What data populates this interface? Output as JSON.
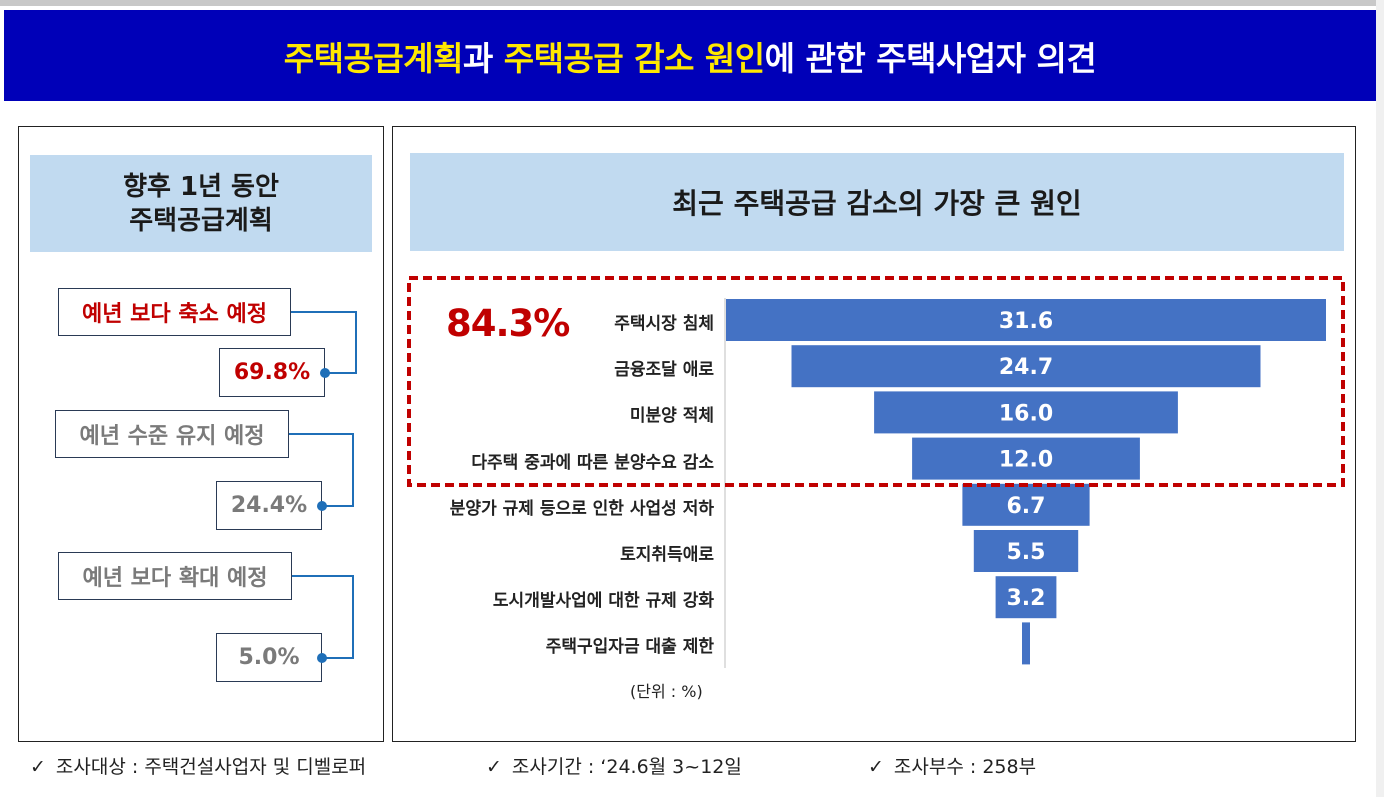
{
  "title": {
    "part1": "주택공급계획",
    "part2": "과 ",
    "part3": "주택공급 감소 원인",
    "part4": "에 관한 주택사업자 의견"
  },
  "left_panel": {
    "heading_line1": "향후 1년 동안",
    "heading_line2": "주택공급계획",
    "items": [
      {
        "label": "예년 보다 축소 예정",
        "value": "69.8%",
        "color": "#c00000"
      },
      {
        "label": "예년 수준 유지 예정",
        "value": "24.4%",
        "color": "#7a7a7a"
      },
      {
        "label": "예년 보다 확대 예정",
        "value": "5.0%",
        "color": "#7a7a7a"
      }
    ]
  },
  "right_panel": {
    "heading": "최근 주택공급 감소의 가장 큰 원인",
    "highlight_total": "84.3%",
    "unit": "(단위 : %)"
  },
  "chart_data": {
    "type": "bar",
    "orientation": "horizontal-centered-funnel",
    "title": "최근 주택공급 감소의 가장 큰 원인",
    "categories": [
      "주택시장 침체",
      "금융조달 애로",
      "미분양 적체",
      "다주택 중과에 따른 분양수요 감소",
      "분양가 규제 등으로 인한 사업성 저하",
      "토지취득애로",
      "도시개발사업에 대한 규제 강화",
      "주택구입자금 대출 제한"
    ],
    "values": [
      31.6,
      24.7,
      16.0,
      12.0,
      6.7,
      5.5,
      3.2,
      0.4
    ],
    "value_labels": [
      "31.6",
      "24.7",
      "16.0",
      "12.0",
      "6.7",
      "5.5",
      "3.2",
      ""
    ],
    "bar_color": "#4472c4",
    "highlighted_group_total": "84.3%",
    "unit": "%"
  },
  "footer": {
    "check": "✓",
    "target": "조사대상 : 주택건설사업자 및 디벨로퍼",
    "period": "조사기간 : ‘24.6월 3~12일",
    "count": "조사부수 : 258부"
  }
}
